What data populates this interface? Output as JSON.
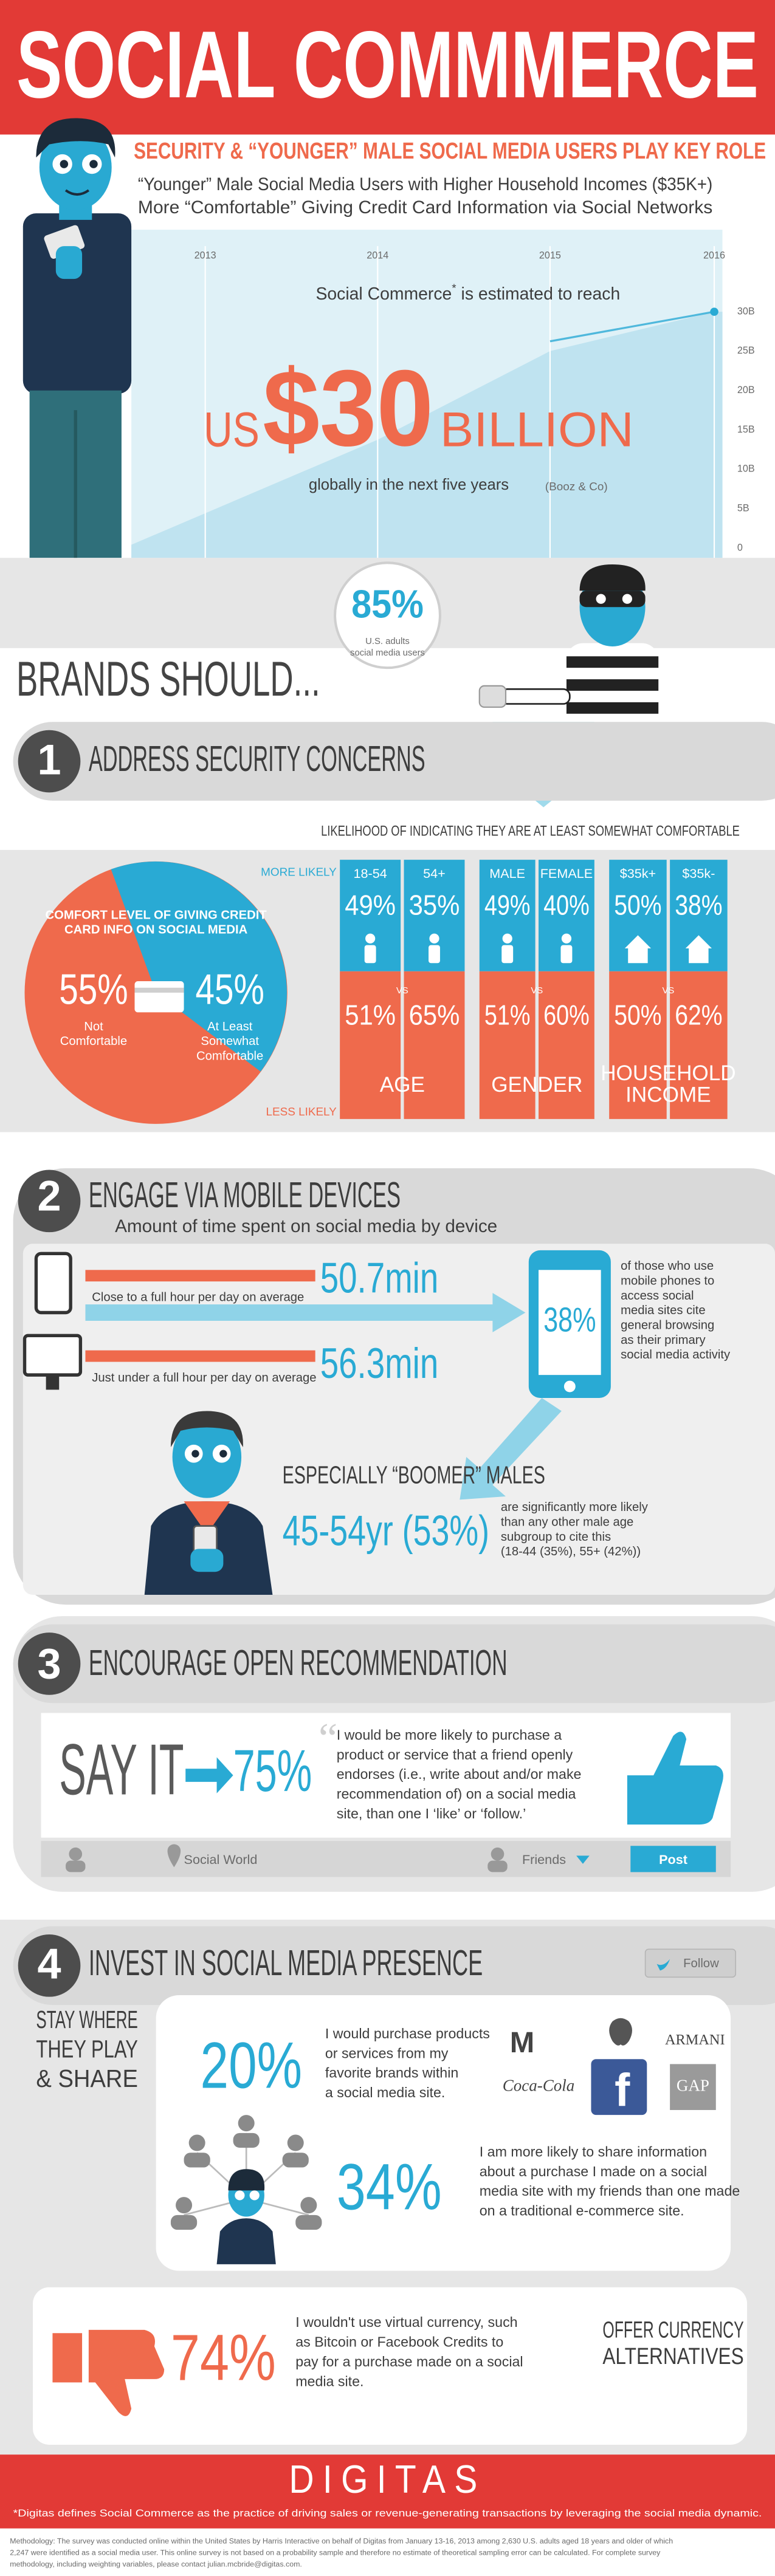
{
  "header": {
    "title": "SOCIAL COMMMERCE"
  },
  "intro": {
    "headline": "SECURITY & “YOUNGER” MALE SOCIAL MEDIA USERS PLAY KEY ROLE",
    "lines": [
      "“Younger” Male Social Media Users with Higher Household Incomes ($35K+)",
      "More “Comfortable” Giving Credit Card Information via Social Networks"
    ]
  },
  "growth": {
    "years": [
      "2013",
      "2014",
      "2015",
      "2016"
    ],
    "scale": [
      "30B",
      "25B",
      "20B",
      "15B",
      "10B",
      "5B",
      "0"
    ],
    "lead": "Social Commerce",
    "asterisk": "*",
    "lead_rest": " is estimated to reach",
    "prefix": "US",
    "amount": "$30",
    "unit": "BILLION",
    "tail": "globally in the next five years",
    "source": "(Booz & Co)"
  },
  "adults": {
    "value": "85%",
    "label": [
      "U.S. adults",
      "social media users"
    ]
  },
  "brands_should": "BRANDS SHOULD...",
  "section1": {
    "number": "1",
    "title": "ADDRESS SECURITY CONCERNS",
    "subtitle": "LIKELIHOOD OF INDICATING THEY ARE AT LEAST SOMEWHAT COMFORTABLE",
    "more": "MORE LIKELY",
    "less": "LESS LIKELY",
    "pie": {
      "title": [
        "COMFORT LEVEL OF GIVING CREDIT",
        "CARD INFO ON SOCIAL MEDIA"
      ],
      "not": {
        "value": "55%",
        "label": [
          "Not",
          "Comfortable"
        ]
      },
      "comfortable": {
        "value": "45%",
        "label": [
          "At Least",
          "Somewhat",
          "Comfortable"
        ]
      }
    },
    "groups": [
      {
        "label": [
          "AGE"
        ],
        "vs": "VS",
        "columns": [
          {
            "label": "18-54",
            "top": "49%",
            "bottom": "51%"
          },
          {
            "label": "54+",
            "top": "35%",
            "bottom": "65%"
          }
        ]
      },
      {
        "label": [
          "GENDER"
        ],
        "vs": "VS",
        "columns": [
          {
            "label": "MALE",
            "top": "49%",
            "bottom": "51%"
          },
          {
            "label": "FEMALE",
            "top": "40%",
            "bottom": "60%"
          }
        ]
      },
      {
        "label": [
          "HOUSEHOLD",
          "INCOME"
        ],
        "vs": "VS",
        "columns": [
          {
            "label": "$35k+",
            "top": "50%",
            "bottom": "50%"
          },
          {
            "label": "$35k-",
            "top": "38%",
            "bottom": "62%"
          }
        ]
      }
    ]
  },
  "section2": {
    "number": "2",
    "title": "ENGAGE VIA MOBILE DEVICES",
    "subtitle": "Amount of time spent on social media by device",
    "mobile": {
      "value": "50.7min",
      "note": "Close to a full hour per day on average"
    },
    "desktop": {
      "value": "56.3min",
      "note": "Just under a full hour per day on average"
    },
    "browsing": {
      "value": "38%",
      "lines": [
        "of those who use",
        "mobile phones to",
        "access social",
        "media sites cite",
        "general browsing",
        "as their primary",
        "social media activity"
      ]
    },
    "boomer": {
      "title": "ESPECIALLY “BOOMER” MALES",
      "value": "45-54yr (53%)",
      "lines": [
        "are significantly more likely",
        "than any other male age",
        "subgroup to cite this",
        "(18-44 (35%), 55+ (42%))"
      ]
    }
  },
  "section3": {
    "number": "3",
    "title": "ENCOURAGE OPEN RECOMMENDATION",
    "say": "SAY IT",
    "value": "75%",
    "lines": [
      "I would be more likely to purchase a",
      "product or service that a friend openly",
      "endorses (i.e., write about and/or make",
      "recommendation of) on a social media",
      "site, than one I ‘like’ or ‘follow.’"
    ],
    "toolbar": {
      "place": "Social World",
      "audience": "Friends",
      "button": "Post"
    }
  },
  "section4": {
    "number": "4",
    "title": "INVEST IN SOCIAL MEDIA PRESENCE",
    "follow": "Follow",
    "side": [
      "STAY WHERE",
      "THEY PLAY",
      "& SHARE"
    ],
    "brands": {
      "value": "20%",
      "lines": [
        "I would purchase products",
        "or services from my",
        "favorite brands within",
        "a social media site."
      ],
      "logos": {
        "mcdonalds": "M",
        "armani": "ARMANI",
        "coke": "Coca-Cola",
        "facebook": "f",
        "gap": "GAP"
      }
    },
    "share": {
      "value": "34%",
      "lines": [
        "I am more likely to share information",
        "about a purchase I made on a social",
        "media site with my friends than one made",
        "on a traditional e-commerce site."
      ]
    },
    "currency": {
      "value": "74%",
      "lines": [
        "I wouldn't use virtual currency, such",
        "as Bitcoin or Facebook Credits to",
        "pay for a purchase made on a social",
        "media site."
      ],
      "advice": [
        "OFFER CURRENCY",
        "ALTERNATIVES"
      ]
    }
  },
  "footer": {
    "brand": "DIGITAS",
    "definition": "*Digitas defines Social Commerce as the practice of driving sales or revenue-generating transactions by leveraging the social media dynamic.",
    "methodology": [
      "Methodology: The survey was conducted online within the United States by Harris Interactive on behalf of Digitas from January 13-16, 2013 among 2,630 U.S. adults aged 18 years and older of which",
      "2,247 were identified as a social media user. This online survey is not based on a probability sample and therefore no estimate of theoretical sampling error can be calculated. For complete survey",
      "methodology, including weighting variables, please contact julian.mcbride@digitas.com."
    ]
  }
}
